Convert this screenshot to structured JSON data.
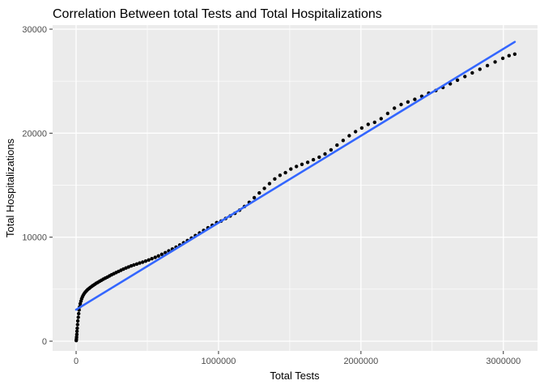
{
  "chart_data": {
    "type": "scatter",
    "title": "Correlation Between total Tests and Total Hospitalizations",
    "xlabel": "Total Tests",
    "ylabel": "Total Hospitalizations",
    "x_ticks": [
      0,
      1000000,
      2000000,
      3000000
    ],
    "x_tick_labels": [
      "0",
      "1000000",
      "2000000",
      "3000000"
    ],
    "y_ticks": [
      0,
      10000,
      20000,
      30000
    ],
    "y_tick_labels": [
      "0",
      "10000",
      "20000",
      "30000"
    ],
    "x_minor_ticks": [
      500000,
      1500000,
      2500000
    ],
    "y_minor_ticks": [
      5000,
      15000,
      25000
    ],
    "xlim": [
      -165000,
      3240000
    ],
    "ylim": [
      -935,
      30390
    ],
    "grid": true,
    "legend_position": "none",
    "panel_background": "#EBEBEB",
    "grid_color": "#FFFFFF",
    "tick_label_color": "#4D4D4D",
    "axis_tick_color": "#333333",
    "point_color": "#000000",
    "smooth_line": {
      "fit": "linear",
      "color": "#3366FF",
      "points": [
        [
          0,
          3030
        ],
        [
          3080000,
          28780
        ]
      ]
    },
    "points": [
      [
        1000,
        60
      ],
      [
        2000,
        200
      ],
      [
        3000,
        400
      ],
      [
        5000,
        650
      ],
      [
        6000,
        950
      ],
      [
        8000,
        1250
      ],
      [
        10000,
        1600
      ],
      [
        12000,
        1950
      ],
      [
        15000,
        2300
      ],
      [
        18000,
        2650
      ],
      [
        21000,
        3000
      ],
      [
        25000,
        3300
      ],
      [
        29000,
        3600
      ],
      [
        34000,
        3850
      ],
      [
        39000,
        4080
      ],
      [
        45000,
        4280
      ],
      [
        51000,
        4450
      ],
      [
        58000,
        4600
      ],
      [
        65000,
        4730
      ],
      [
        73000,
        4850
      ],
      [
        81000,
        4960
      ],
      [
        90000,
        5060
      ],
      [
        99000,
        5160
      ],
      [
        109000,
        5260
      ],
      [
        119000,
        5360
      ],
      [
        130000,
        5460
      ],
      [
        141000,
        5560
      ],
      [
        153000,
        5660
      ],
      [
        165000,
        5760
      ],
      [
        178000,
        5860
      ],
      [
        191000,
        5960
      ],
      [
        205000,
        6060
      ],
      [
        219000,
        6160
      ],
      [
        234000,
        6270
      ],
      [
        249000,
        6380
      ],
      [
        265000,
        6490
      ],
      [
        281000,
        6600
      ],
      [
        298000,
        6710
      ],
      [
        315000,
        6820
      ],
      [
        332000,
        6930
      ],
      [
        350000,
        7040
      ],
      [
        368000,
        7140
      ],
      [
        387000,
        7240
      ],
      [
        406000,
        7330
      ],
      [
        426000,
        7420
      ],
      [
        446000,
        7510
      ],
      [
        467000,
        7600
      ],
      [
        488000,
        7700
      ],
      [
        510000,
        7810
      ],
      [
        532000,
        7930
      ],
      [
        555000,
        8060
      ],
      [
        578000,
        8200
      ],
      [
        602000,
        8350
      ],
      [
        626000,
        8510
      ],
      [
        651000,
        8680
      ],
      [
        676000,
        8860
      ],
      [
        702000,
        9050
      ],
      [
        728000,
        9250
      ],
      [
        755000,
        9460
      ],
      [
        782000,
        9680
      ],
      [
        810000,
        9910
      ],
      [
        838000,
        10150
      ],
      [
        867000,
        10400
      ],
      [
        896000,
        10650
      ],
      [
        926000,
        10900
      ],
      [
        956000,
        11150
      ],
      [
        987000,
        11400
      ],
      [
        1018000,
        11550
      ],
      [
        1050000,
        11800
      ],
      [
        1082000,
        12050
      ],
      [
        1115000,
        12300
      ],
      [
        1148000,
        12600
      ],
      [
        1182000,
        12950
      ],
      [
        1216000,
        13350
      ],
      [
        1251000,
        13800
      ],
      [
        1286000,
        14250
      ],
      [
        1322000,
        14700
      ],
      [
        1358000,
        15150
      ],
      [
        1395000,
        15600
      ],
      [
        1432000,
        15950
      ],
      [
        1470000,
        16200
      ],
      [
        1508000,
        16550
      ],
      [
        1547000,
        16800
      ],
      [
        1586000,
        17000
      ],
      [
        1626000,
        17200
      ],
      [
        1666000,
        17450
      ],
      [
        1707000,
        17700
      ],
      [
        1748000,
        18000
      ],
      [
        1790000,
        18400
      ],
      [
        1832000,
        18850
      ],
      [
        1875000,
        19300
      ],
      [
        1918000,
        19750
      ],
      [
        1962000,
        20150
      ],
      [
        2006000,
        20500
      ],
      [
        2051000,
        20850
      ],
      [
        2096000,
        21050
      ],
      [
        2142000,
        21400
      ],
      [
        2188000,
        21900
      ],
      [
        2235000,
        22400
      ],
      [
        2282000,
        22750
      ],
      [
        2330000,
        23000
      ],
      [
        2378000,
        23250
      ],
      [
        2427000,
        23550
      ],
      [
        2476000,
        23850
      ],
      [
        2526000,
        24100
      ],
      [
        2576000,
        24400
      ],
      [
        2627000,
        24750
      ],
      [
        2678000,
        25100
      ],
      [
        2730000,
        25450
      ],
      [
        2782000,
        25800
      ],
      [
        2835000,
        26150
      ],
      [
        2888000,
        26500
      ],
      [
        2942000,
        26850
      ],
      [
        2996000,
        27200
      ],
      [
        3040000,
        27450
      ],
      [
        3080000,
        27600
      ]
    ]
  }
}
